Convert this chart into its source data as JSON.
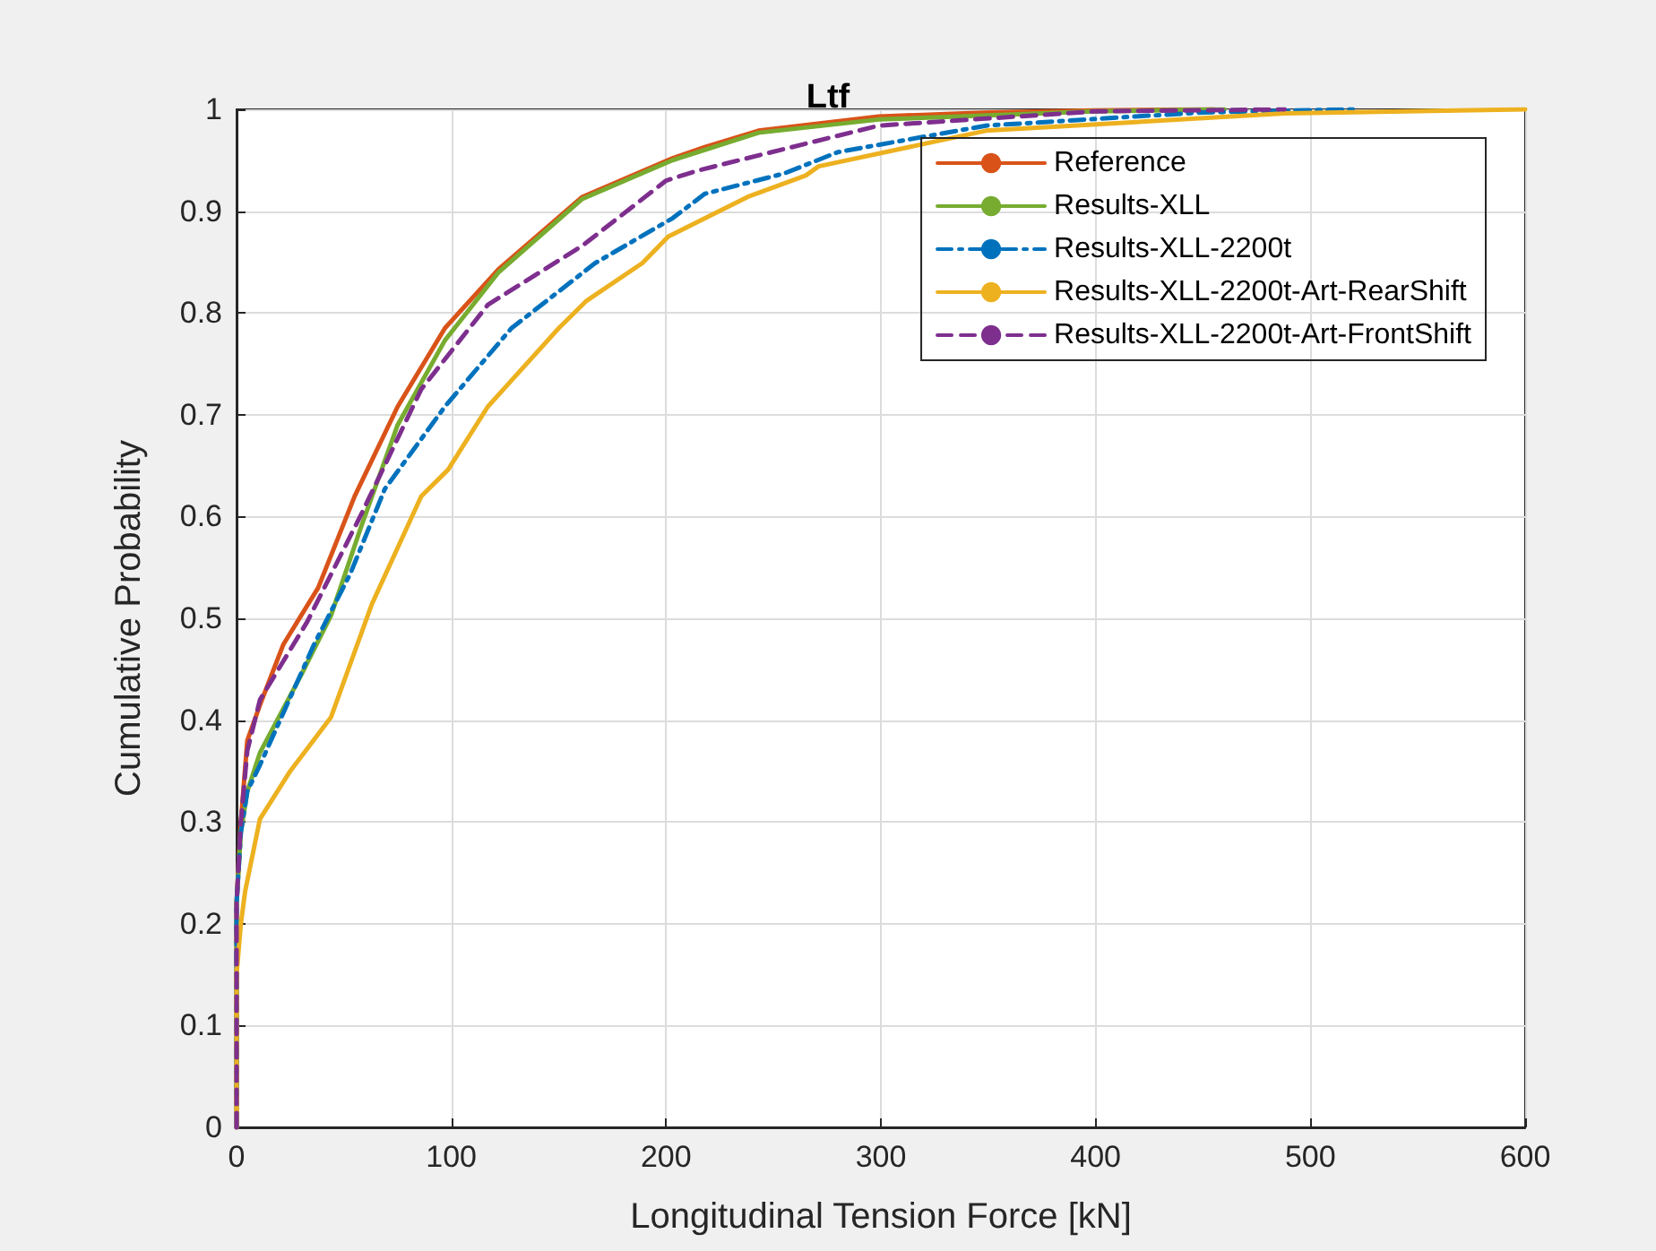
{
  "chart_data": {
    "type": "line",
    "title": "Ltf",
    "xlabel": "Longitudinal Tension Force [kN]",
    "ylabel": "Cumulative Probability",
    "xlim": [
      0,
      600
    ],
    "xticks": [
      0,
      100,
      200,
      300,
      400,
      500,
      600
    ],
    "ylim": [
      0,
      1
    ],
    "yticks": [
      0,
      0.1,
      0.2,
      0.3,
      0.4,
      0.5,
      0.6,
      0.7,
      0.8,
      0.9,
      1
    ],
    "grid": true,
    "legend": "top right",
    "marker": "none",
    "series": [
      {
        "name": "Reference",
        "color": "#d95319",
        "line_style": "solid",
        "x": [
          0,
          0,
          2,
          5,
          10.9,
          21.7,
          38,
          55,
          75,
          97,
          122,
          161,
          203,
          218,
          243,
          299,
          350,
          400,
          455
        ],
        "values": [
          0,
          0.22,
          0.3,
          0.38,
          0.415,
          0.474,
          0.53,
          0.62,
          0.708,
          0.785,
          0.843,
          0.914,
          0.952,
          0.963,
          0.979,
          0.993,
          0.997,
          0.999,
          1
        ]
      },
      {
        "name": "Results-XLL",
        "color": "#77ac30",
        "line_style": "solid",
        "x": [
          0,
          0,
          2,
          5,
          10.9,
          30,
          44,
          58,
          75,
          97,
          122,
          161,
          203,
          243,
          299,
          400,
          460
        ],
        "values": [
          0,
          0.22,
          0.29,
          0.33,
          0.368,
          0.444,
          0.503,
          0.59,
          0.69,
          0.773,
          0.84,
          0.912,
          0.95,
          0.977,
          0.99,
          0.998,
          1
        ]
      },
      {
        "name": "Results-XLL-2200t",
        "color": "#0072bd",
        "line_style": "dashdot",
        "x": [
          0,
          0,
          2,
          5,
          10.9,
          36,
          53,
          69,
          97,
          128,
          167,
          203,
          218,
          255,
          280,
          349,
          450,
          520
        ],
        "values": [
          0,
          0.22,
          0.29,
          0.33,
          0.356,
          0.474,
          0.544,
          0.627,
          0.708,
          0.785,
          0.849,
          0.893,
          0.917,
          0.937,
          0.958,
          0.984,
          0.997,
          1
        ]
      },
      {
        "name": "Results-XLL-2200t-Art-RearShift",
        "color": "#edb120",
        "line_style": "solid",
        "x": [
          0,
          0,
          2,
          4,
          10.9,
          25,
          44,
          63,
          86,
          98.5,
          117,
          126,
          150,
          163,
          189,
          201,
          238,
          265,
          271,
          349,
          488,
          600
        ],
        "values": [
          0,
          0.15,
          0.2,
          0.232,
          0.303,
          0.35,
          0.403,
          0.514,
          0.62,
          0.646,
          0.708,
          0.729,
          0.785,
          0.812,
          0.849,
          0.875,
          0.914,
          0.935,
          0.944,
          0.979,
          0.996,
          1
        ]
      },
      {
        "name": "Results-XLL-2200t-Art-FrontShift",
        "color": "#7e2f8e",
        "line_style": "dashed",
        "x": [
          0,
          0,
          2,
          5,
          10.9,
          33,
          58,
          86,
          117,
          161,
          200,
          215,
          255,
          299,
          400,
          488
        ],
        "values": [
          0,
          0.22,
          0.3,
          0.37,
          0.42,
          0.497,
          0.602,
          0.725,
          0.808,
          0.866,
          0.93,
          0.94,
          0.961,
          0.984,
          0.998,
          1
        ]
      }
    ]
  }
}
